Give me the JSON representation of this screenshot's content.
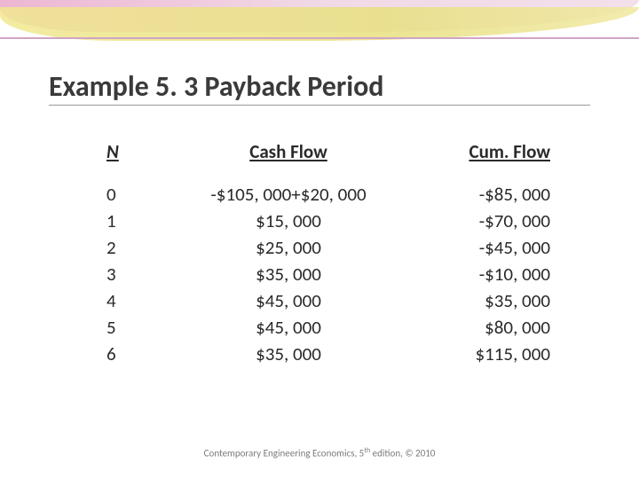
{
  "title": "Example 5. 3 Payback Period",
  "columns": {
    "n": "N",
    "cf": "Cash Flow",
    "cum": "Cum. Flow"
  },
  "rows": [
    {
      "n": "0",
      "cf": "-$105, 000+$20, 000",
      "cum": "-$85, 000"
    },
    {
      "n": "1",
      "cf": "$15, 000",
      "cum": "-$70, 000"
    },
    {
      "n": "2",
      "cf": "$25, 000",
      "cum": "-$45, 000"
    },
    {
      "n": "3",
      "cf": "$35, 000",
      "cum": "-$10, 000"
    },
    {
      "n": "4",
      "cf": "$45, 000",
      "cum": "$35, 000"
    },
    {
      "n": "5",
      "cf": "$45, 000",
      "cum": "$80, 000"
    },
    {
      "n": "6",
      "cf": "$35, 000",
      "cum": "$115, 000"
    }
  ],
  "footer_pre": "Contemporary Engineering Economics, 5",
  "footer_sup": "th",
  "footer_post": " edition, © 2010"
}
